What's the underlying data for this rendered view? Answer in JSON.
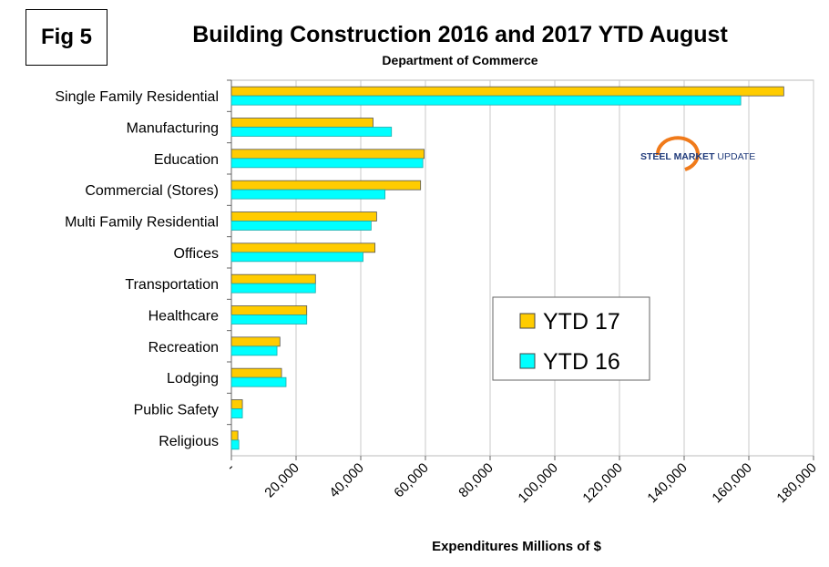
{
  "figure_label": "Fig 5",
  "logo": {
    "text": "STEEL MARKET UPDATE"
  },
  "chart_data": {
    "type": "bar",
    "orientation": "horizontal",
    "title": "Building Construction 2016 and 2017 YTD August",
    "subtitle": "Department of Commerce",
    "xlabel": "Expenditures Millions of $",
    "ylabel": "",
    "xlim": [
      0,
      180000
    ],
    "xticks": [
      "-",
      "20,000",
      "40,000",
      "60,000",
      "80,000",
      "100,000",
      "120,000",
      "140,000",
      "160,000",
      "180,000"
    ],
    "grid": true,
    "legend_position": "center-right",
    "categories": [
      "Single Family Residential",
      "Manufacturing",
      "Education",
      "Commercial (Stores)",
      "Multi Family Residential",
      "Offices",
      "Transportation",
      "Healthcare",
      "Recreation",
      "Lodging",
      "Public Safety",
      "Religious"
    ],
    "series": [
      {
        "name": "YTD 17",
        "color": "#FFCC00",
        "values": [
          170800,
          43800,
          59600,
          58500,
          44900,
          44400,
          26000,
          23300,
          15000,
          15500,
          3400,
          2000
        ]
      },
      {
        "name": "YTD 16",
        "color": "#00FFFF",
        "values": [
          157500,
          49500,
          59200,
          47500,
          43200,
          40700,
          26000,
          23300,
          14100,
          16900,
          3400,
          2300
        ]
      }
    ]
  }
}
